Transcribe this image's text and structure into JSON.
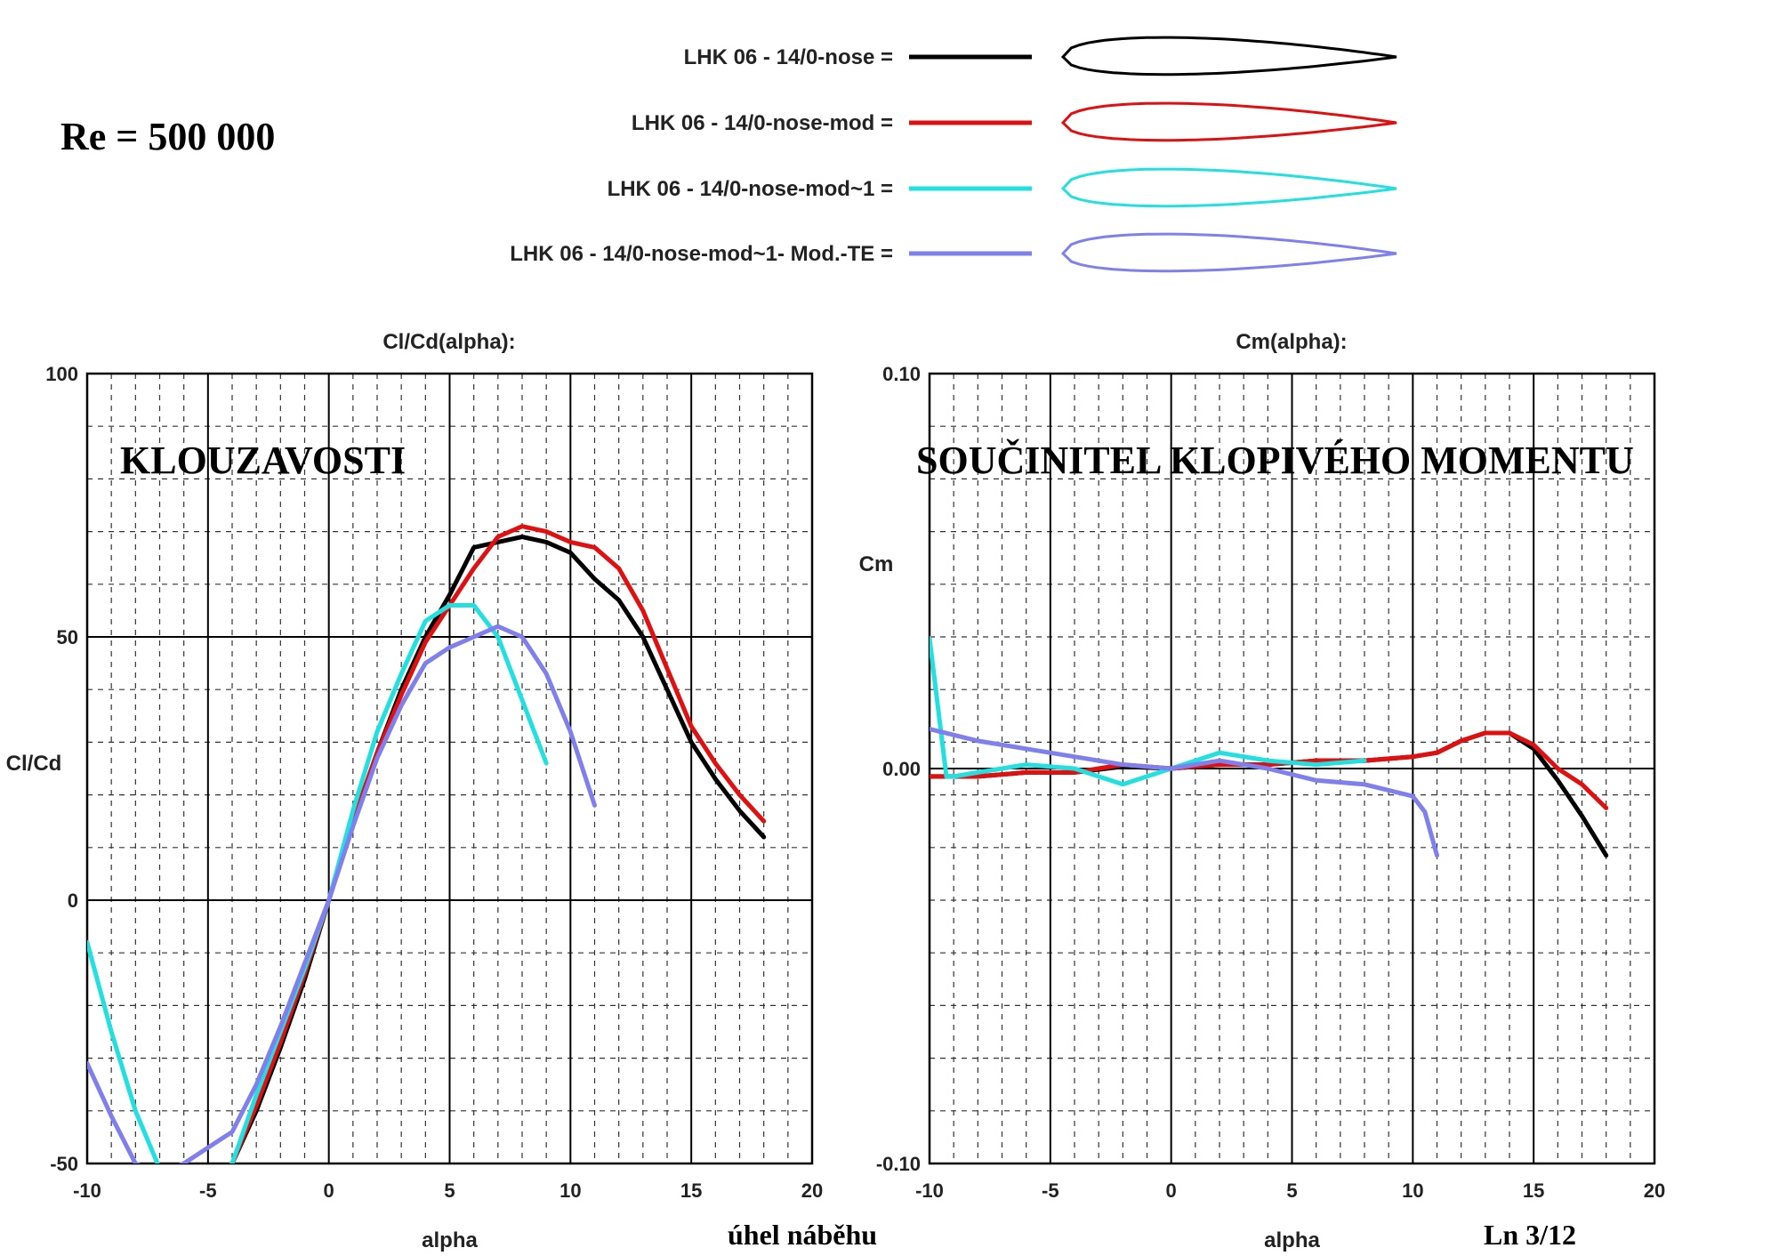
{
  "header": {
    "reynolds": "Re = 500 000"
  },
  "legend": {
    "items": [
      {
        "label": "LHK   06  -  14/0-nose =",
        "color": "#000000"
      },
      {
        "label": "LHK   06  -  14/0-nose-mod =",
        "color": "#e01010"
      },
      {
        "label": "LHK   06  -  14/0-nose-mod~1 =",
        "color": "#22e0e0"
      },
      {
        "label": "LHK   06  -  14/0-nose-mod~1- Mod.-TE =",
        "color": "#7f7fee"
      }
    ]
  },
  "footer": {
    "center_label": "úhel  náběhu",
    "page_label": "Ln 3/12"
  },
  "chart_data": [
    {
      "type": "line",
      "title": "Cl/Cd(alpha):",
      "overlay_label": "KLOUZAVOSTI",
      "xlabel": "alpha",
      "ylabel": "Cl/Cd",
      "xlim": [
        -10,
        20
      ],
      "ylim": [
        -50,
        100
      ],
      "xticks": [
        "-10",
        "-5",
        "0",
        "5",
        "10",
        "15",
        "20"
      ],
      "yticks": [
        "-50",
        "0",
        "50",
        "100"
      ],
      "grid": true,
      "series": [
        {
          "name": "LHK   06  -  14/0-nose =",
          "color": "#000000",
          "x": [
            -4,
            -3,
            -2,
            -1,
            0,
            1,
            2,
            3,
            4,
            5,
            6,
            7,
            8,
            9,
            10,
            11,
            12,
            13,
            14,
            15,
            16,
            17,
            18
          ],
          "y": [
            -50,
            -40,
            -28,
            -15,
            0,
            15,
            28,
            40,
            50,
            58,
            67,
            68,
            69,
            68,
            66,
            61,
            57,
            50,
            40,
            30,
            23,
            17,
            12
          ]
        },
        {
          "name": "LHK   06  -  14/0-nose-mod =",
          "color": "#e01010",
          "x": [
            -4,
            -3,
            -2,
            -1,
            0,
            1,
            2,
            3,
            4,
            5,
            6,
            7,
            8,
            9,
            10,
            11,
            12,
            13,
            14,
            15,
            16,
            17,
            18
          ],
          "y": [
            -50,
            -39,
            -27,
            -14,
            0,
            15,
            28,
            39,
            49,
            56,
            63,
            69,
            71,
            70,
            68,
            67,
            63,
            55,
            44,
            33,
            26,
            20,
            15
          ]
        },
        {
          "name": "LHK   06  -  14/0-nose-mod~1 =",
          "color": "#22e0e0",
          "x": [
            -10,
            -9,
            -8,
            -7,
            -6,
            -5,
            -4,
            -3,
            -2,
            -1,
            0,
            1,
            2,
            3,
            4,
            5,
            6,
            7,
            8,
            9
          ],
          "y": [
            -8,
            -25,
            -40,
            -51,
            -55,
            -55,
            -50,
            -37,
            -25,
            -13,
            0,
            17,
            32,
            43,
            53,
            56,
            56,
            50,
            38,
            26
          ]
        },
        {
          "name": "LHK   06  -  14/0-nose-mod~1- Mod.-TE =",
          "color": "#7f7fee",
          "x": [
            -10,
            -9,
            -8,
            -7,
            -6,
            -5,
            -4,
            -3,
            -2,
            -1,
            0,
            1,
            2,
            3,
            4,
            5,
            6,
            7,
            8,
            9,
            10,
            11
          ],
          "y": [
            -31,
            -41,
            -50,
            -52,
            -50,
            -47,
            -44,
            -35,
            -24,
            -12,
            0,
            14,
            27,
            37,
            45,
            48,
            50,
            52,
            50,
            43,
            32,
            18
          ]
        }
      ]
    },
    {
      "type": "line",
      "title": "Cm(alpha):",
      "overlay_label": "SOUČINITEL KLOPIVÉHO  MOMENTU",
      "xlabel": "alpha",
      "ylabel": "Cm",
      "xlim": [
        -10,
        20
      ],
      "ylim": [
        -0.1,
        0.1
      ],
      "xticks": [
        "-10",
        "-5",
        "0",
        "5",
        "10",
        "15",
        "20"
      ],
      "yticks": [
        "-0.10",
        "0.00",
        "0.10"
      ],
      "grid": true,
      "series": [
        {
          "name": "LHK   06  -  14/0-nose =",
          "color": "#000000",
          "x": [
            -10,
            -8,
            -6,
            -4,
            -2,
            0,
            2,
            4,
            6,
            8,
            10,
            11,
            12,
            13,
            14,
            15,
            16,
            17,
            18
          ],
          "y": [
            -0.002,
            -0.002,
            -0.001,
            -0.001,
            0.0005,
            0.0,
            0.001,
            0.001,
            0.002,
            0.002,
            0.003,
            0.004,
            0.007,
            0.009,
            0.009,
            0.005,
            -0.003,
            -0.012,
            -0.022
          ]
        },
        {
          "name": "LHK   06  -  14/0-nose-mod =",
          "color": "#e01010",
          "x": [
            -10,
            -8,
            -6,
            -4,
            -2,
            0,
            2,
            4,
            6,
            8,
            10,
            11,
            12,
            13,
            14,
            15,
            16,
            17,
            18
          ],
          "y": [
            -0.002,
            -0.002,
            -0.001,
            -0.001,
            0.001,
            0.0,
            0.001,
            0.001,
            0.002,
            0.002,
            0.003,
            0.004,
            0.007,
            0.009,
            0.009,
            0.006,
            0.0,
            -0.004,
            -0.01
          ]
        },
        {
          "name": "LHK   06  -  14/0-nose-mod~1 =",
          "color": "#22e0e0",
          "x": [
            -10,
            -9.3,
            -9,
            -8,
            -6,
            -4,
            -2,
            0,
            2,
            4,
            6,
            8
          ],
          "y": [
            0.033,
            -0.002,
            -0.002,
            -0.001,
            0.001,
            0.0,
            -0.004,
            0.0,
            0.004,
            0.002,
            0.001,
            0.002
          ]
        },
        {
          "name": "LHK   06  -  14/0-nose-mod~1- Mod.-TE =",
          "color": "#7f7fee",
          "x": [
            -10,
            -8,
            -6,
            -4,
            -2,
            0,
            2,
            4,
            6,
            8,
            10,
            10.5,
            11
          ],
          "y": [
            0.01,
            0.007,
            0.005,
            0.003,
            0.001,
            0.0,
            0.002,
            0.0,
            -0.003,
            -0.004,
            -0.007,
            -0.011,
            -0.022
          ]
        }
      ]
    }
  ]
}
